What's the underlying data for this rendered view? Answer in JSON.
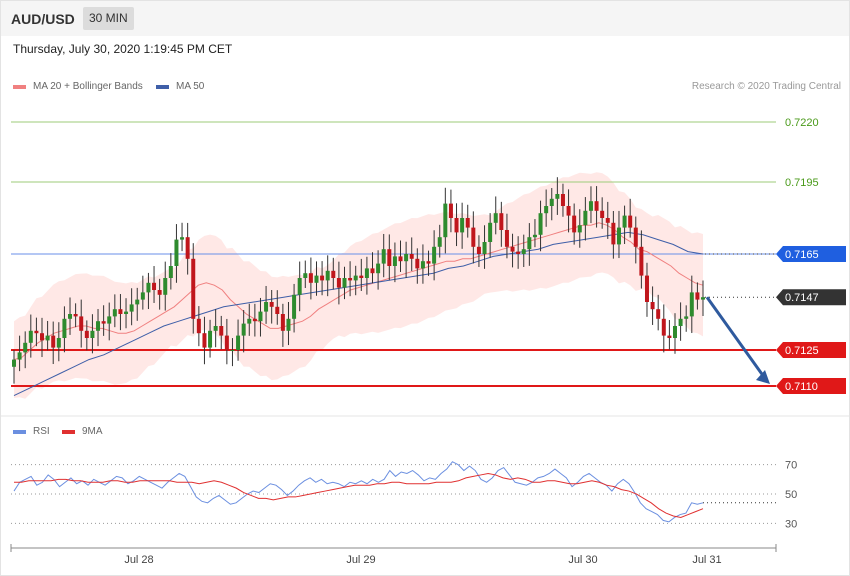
{
  "header": {
    "symbol": "AUD/USD",
    "timeframe": "30 MIN",
    "datetime": "Thursday, July 30, 2020 1:19:45 PM CET"
  },
  "legend": {
    "ma20": "MA 20 + Bollinger Bands",
    "ma50": "MA 50",
    "rsi": "RSI",
    "rsi_ma": "9MA"
  },
  "credit": "Research © 2020 Trading Central",
  "colors": {
    "up": "#2e8b2e",
    "down": "#c0161c",
    "ma20": "#f08080",
    "ma50": "#3f5fa8",
    "bands": "#ffd8d6",
    "rsi": "#6b8fe0",
    "rsi_ma": "#e03030",
    "arrow": "#2f5a9e"
  },
  "chart_data": {
    "type": "candlestick",
    "price_ylim": [
      0.71,
      0.723
    ],
    "x_ticks": [
      "Jul 28",
      "Jul 29",
      "Jul 30",
      "Jul 31"
    ],
    "levels": [
      {
        "value": 0.722,
        "label": "0.7220",
        "kind": "resistance"
      },
      {
        "value": 0.7195,
        "label": "0.7195",
        "kind": "resistance"
      },
      {
        "value": 0.7165,
        "label": "0.7165",
        "kind": "pivot"
      },
      {
        "value": 0.7147,
        "label": "0.7147",
        "kind": "last"
      },
      {
        "value": 0.7125,
        "label": "0.7125",
        "kind": "support"
      },
      {
        "value": 0.711,
        "label": "0.7110",
        "kind": "support"
      }
    ],
    "closes": [
      0.7121,
      0.7124,
      0.7128,
      0.7133,
      0.7132,
      0.7129,
      0.7131,
      0.7126,
      0.713,
      0.7138,
      0.714,
      0.7139,
      0.7133,
      0.713,
      0.7133,
      0.7137,
      0.7136,
      0.7139,
      0.7142,
      0.714,
      0.7141,
      0.7144,
      0.7146,
      0.7149,
      0.7153,
      0.715,
      0.7148,
      0.7155,
      0.716,
      0.7171,
      0.7172,
      0.7163,
      0.7138,
      0.7132,
      0.7126,
      0.7133,
      0.7135,
      0.7131,
      0.7125,
      0.7125,
      0.7131,
      0.7136,
      0.7138,
      0.7137,
      0.7141,
      0.7145,
      0.7143,
      0.714,
      0.7133,
      0.7138,
      0.7148,
      0.7155,
      0.7157,
      0.7153,
      0.7156,
      0.7154,
      0.7158,
      0.7155,
      0.7151,
      0.7155,
      0.7154,
      0.7156,
      0.7155,
      0.7159,
      0.7157,
      0.7161,
      0.7167,
      0.716,
      0.7164,
      0.7162,
      0.7165,
      0.7163,
      0.7159,
      0.7162,
      0.7161,
      0.7168,
      0.7172,
      0.7186,
      0.718,
      0.7174,
      0.718,
      0.7176,
      0.7168,
      0.7165,
      0.717,
      0.7178,
      0.7182,
      0.7175,
      0.7168,
      0.7166,
      0.7165,
      0.7167,
      0.7172,
      0.7173,
      0.7182,
      0.7185,
      0.7188,
      0.719,
      0.7185,
      0.7181,
      0.7174,
      0.7177,
      0.7183,
      0.7187,
      0.7183,
      0.718,
      0.7178,
      0.7169,
      0.7176,
      0.7181,
      0.7176,
      0.7168,
      0.7156,
      0.7145,
      0.7142,
      0.7138,
      0.7131,
      0.713,
      0.7135,
      0.7138,
      0.7139,
      0.7149,
      0.7146,
      0.7147
    ],
    "ma20": [
      0.7121,
      0.7122,
      0.7125,
      0.7128,
      0.713,
      0.7132,
      0.7133,
      0.7134,
      0.7135,
      0.7135,
      0.7134,
      0.7134,
      0.7133,
      0.7132,
      0.7132,
      0.7133,
      0.7135,
      0.7137,
      0.7139,
      0.7141,
      0.7143,
      0.7146,
      0.7149,
      0.7152,
      0.7153,
      0.7152,
      0.715,
      0.7146,
      0.7143,
      0.714,
      0.7138,
      0.7136,
      0.7134,
      0.7134,
      0.7135,
      0.7136,
      0.7137,
      0.7139,
      0.7142,
      0.7144,
      0.7146,
      0.7148,
      0.715,
      0.7151,
      0.7152,
      0.7153,
      0.7154,
      0.7155,
      0.7156,
      0.7157,
      0.7158,
      0.7159,
      0.716,
      0.7161,
      0.7162,
      0.7162,
      0.7163,
      0.7163,
      0.7164,
      0.7165,
      0.7166,
      0.7167,
      0.7168,
      0.7169,
      0.717,
      0.7171,
      0.7172,
      0.7173,
      0.7174,
      0.7175,
      0.7176,
      0.7177,
      0.7177,
      0.7178,
      0.7177,
      0.7175,
      0.7172,
      0.717,
      0.7167,
      0.7166,
      0.7164,
      0.7162,
      0.716,
      0.7157,
      0.7155,
      0.7153,
      0.7152
    ],
    "ma50": [
      0.7106,
      0.7109,
      0.7112,
      0.7115,
      0.7118,
      0.7121,
      0.7123,
      0.7126,
      0.7129,
      0.7132,
      0.7135,
      0.7137,
      0.7139,
      0.7141,
      0.7143,
      0.7144,
      0.7145,
      0.7146,
      0.7147,
      0.7148,
      0.7149,
      0.715,
      0.7151,
      0.7152,
      0.7153,
      0.7154,
      0.7155,
      0.7156,
      0.7157,
      0.7159,
      0.716,
      0.7162,
      0.7164,
      0.7165,
      0.7166,
      0.7167,
      0.7169,
      0.717,
      0.7171,
      0.7172,
      0.7173,
      0.7174,
      0.7173,
      0.7171,
      0.7169,
      0.7166,
      0.7165
    ],
    "rsi_ylim": [
      20,
      80
    ],
    "rsi_ticks": [
      70,
      50,
      30
    ],
    "rsi": [
      52,
      58,
      60,
      62,
      56,
      58,
      63,
      60,
      55,
      58,
      61,
      57,
      59,
      56,
      60,
      58,
      56,
      59,
      62,
      61,
      57,
      59,
      62,
      60,
      58,
      56,
      54,
      58,
      61,
      64,
      62,
      55,
      48,
      45,
      44,
      47,
      49,
      46,
      43,
      44,
      47,
      50,
      52,
      51,
      54,
      57,
      56,
      53,
      49,
      52,
      56,
      59,
      61,
      58,
      60,
      57,
      58,
      57,
      55,
      58,
      57,
      59,
      57,
      60,
      58,
      60,
      66,
      62,
      65,
      64,
      66,
      63,
      59,
      61,
      60,
      64,
      67,
      72,
      70,
      66,
      69,
      66,
      60,
      58,
      61,
      66,
      68,
      63,
      58,
      57,
      56,
      58,
      61,
      62,
      64,
      67,
      64,
      61,
      55,
      58,
      62,
      64,
      61,
      58,
      56,
      52,
      57,
      60,
      57,
      51,
      44,
      40,
      38,
      36,
      32,
      31,
      34,
      36,
      37,
      44,
      43,
      44
    ],
    "rsi_ma": [
      58,
      58,
      59,
      59,
      59,
      59,
      60,
      60,
      59,
      59,
      58,
      58,
      58,
      59,
      59,
      58,
      58,
      59,
      59,
      59,
      59,
      59,
      58,
      58,
      58,
      57,
      58,
      59,
      58,
      56,
      54,
      51,
      49,
      47,
      47,
      46,
      47,
      48,
      48,
      49,
      50,
      51,
      52,
      53,
      54,
      55,
      56,
      56,
      56,
      57,
      57,
      58,
      58,
      57,
      57,
      57,
      57,
      58,
      58,
      58,
      59,
      61,
      62,
      63,
      64,
      63,
      61,
      60,
      61,
      60,
      58,
      58,
      59,
      59,
      58,
      57,
      57,
      58,
      59,
      58,
      56,
      55,
      53,
      52,
      50,
      47,
      44,
      40,
      37,
      35,
      34,
      36,
      38,
      40
    ]
  }
}
